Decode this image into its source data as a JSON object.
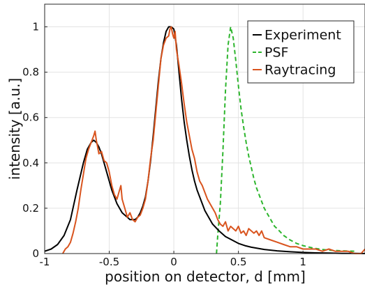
{
  "chart_data": {
    "type": "line",
    "title": "",
    "xlabel": "position on detector, d [mm]",
    "ylabel": "intensity [a.u.]",
    "xlim": [
      -1.0,
      1.48
    ],
    "ylim": [
      0,
      1.1
    ],
    "xticks": [
      -1,
      -0.5,
      0,
      0.5,
      1
    ],
    "xtick_labels": [
      "-1",
      "-0.5",
      "0",
      "0.5",
      "1"
    ],
    "yticks": [
      0,
      0.2,
      0.4,
      0.6,
      0.8,
      1
    ],
    "ytick_labels": [
      "0",
      "0.2",
      "0.4",
      "0.6",
      "0.8",
      "1"
    ],
    "grid": true,
    "legend_position": "top-right",
    "series": [
      {
        "name": "Experiment",
        "color": "#000000",
        "style": "solid",
        "x": [
          -1.0,
          -0.95,
          -0.9,
          -0.85,
          -0.8,
          -0.75,
          -0.7,
          -0.67,
          -0.64,
          -0.62,
          -0.6,
          -0.58,
          -0.56,
          -0.54,
          -0.52,
          -0.5,
          -0.48,
          -0.46,
          -0.44,
          -0.42,
          -0.4,
          -0.38,
          -0.36,
          -0.34,
          -0.32,
          -0.3,
          -0.28,
          -0.26,
          -0.24,
          -0.22,
          -0.2,
          -0.18,
          -0.16,
          -0.14,
          -0.12,
          -0.1,
          -0.08,
          -0.06,
          -0.04,
          -0.02,
          0.0,
          0.02,
          0.04,
          0.06,
          0.08,
          0.1,
          0.12,
          0.14,
          0.16,
          0.18,
          0.2,
          0.22,
          0.24,
          0.26,
          0.28,
          0.3,
          0.35,
          0.4,
          0.45,
          0.5,
          0.55,
          0.6,
          0.7,
          0.8,
          0.9,
          1.0,
          1.1,
          1.2,
          1.3,
          1.4,
          1.48
        ],
        "y": [
          0.01,
          0.02,
          0.04,
          0.08,
          0.15,
          0.28,
          0.4,
          0.46,
          0.49,
          0.5,
          0.49,
          0.47,
          0.44,
          0.4,
          0.36,
          0.32,
          0.28,
          0.25,
          0.22,
          0.2,
          0.18,
          0.17,
          0.16,
          0.15,
          0.15,
          0.15,
          0.16,
          0.18,
          0.21,
          0.25,
          0.32,
          0.41,
          0.52,
          0.64,
          0.76,
          0.86,
          0.93,
          0.98,
          1.0,
          1.0,
          0.99,
          0.92,
          0.8,
          0.68,
          0.58,
          0.5,
          0.43,
          0.37,
          0.32,
          0.28,
          0.25,
          0.22,
          0.19,
          0.17,
          0.15,
          0.13,
          0.1,
          0.075,
          0.06,
          0.045,
          0.035,
          0.028,
          0.018,
          0.012,
          0.008,
          0.005,
          0.003,
          0.002,
          0.001,
          0.001,
          0.0
        ]
      },
      {
        "name": "PSF",
        "color": "#2db52d",
        "style": "dashed",
        "x": [
          0.33,
          0.34,
          0.36,
          0.38,
          0.4,
          0.42,
          0.44,
          0.46,
          0.48,
          0.5,
          0.52,
          0.54,
          0.56,
          0.58,
          0.6,
          0.62,
          0.64,
          0.66,
          0.68,
          0.7,
          0.72,
          0.74,
          0.76,
          0.78,
          0.8,
          0.85,
          0.9,
          0.95,
          1.0,
          1.05,
          1.1,
          1.15,
          1.2,
          1.3,
          1.4
        ],
        "y": [
          0.0,
          0.08,
          0.22,
          0.45,
          0.72,
          0.92,
          1.0,
          0.95,
          0.85,
          0.74,
          0.64,
          0.56,
          0.49,
          0.43,
          0.38,
          0.33,
          0.29,
          0.26,
          0.23,
          0.2,
          0.18,
          0.16,
          0.14,
          0.12,
          0.11,
          0.08,
          0.06,
          0.045,
          0.035,
          0.028,
          0.022,
          0.018,
          0.015,
          0.012,
          0.01
        ]
      },
      {
        "name": "Raytracing",
        "color": "#d9541e",
        "style": "solid",
        "x": [
          -0.86,
          -0.84,
          -0.82,
          -0.8,
          -0.78,
          -0.76,
          -0.74,
          -0.72,
          -0.7,
          -0.68,
          -0.66,
          -0.64,
          -0.62,
          -0.61,
          -0.6,
          -0.59,
          -0.58,
          -0.56,
          -0.54,
          -0.52,
          -0.5,
          -0.48,
          -0.46,
          -0.44,
          -0.42,
          -0.41,
          -0.4,
          -0.38,
          -0.36,
          -0.34,
          -0.32,
          -0.3,
          -0.28,
          -0.26,
          -0.24,
          -0.22,
          -0.2,
          -0.18,
          -0.16,
          -0.14,
          -0.12,
          -0.1,
          -0.08,
          -0.06,
          -0.04,
          -0.03,
          -0.02,
          -0.01,
          0.0,
          0.01,
          0.02,
          0.04,
          0.06,
          0.08,
          0.1,
          0.12,
          0.14,
          0.16,
          0.18,
          0.2,
          0.22,
          0.24,
          0.26,
          0.28,
          0.3,
          0.32,
          0.34,
          0.36,
          0.38,
          0.4,
          0.42,
          0.44,
          0.46,
          0.48,
          0.5,
          0.52,
          0.54,
          0.56,
          0.58,
          0.6,
          0.62,
          0.64,
          0.66,
          0.68,
          0.7,
          0.75,
          0.8,
          0.85,
          0.9,
          0.95,
          1.0,
          1.05,
          1.1,
          1.15,
          1.2,
          1.25,
          1.3,
          1.35,
          1.4,
          1.45,
          1.48
        ],
        "y": [
          0.0,
          0.02,
          0.03,
          0.05,
          0.09,
          0.14,
          0.2,
          0.28,
          0.35,
          0.42,
          0.46,
          0.49,
          0.52,
          0.54,
          0.5,
          0.47,
          0.44,
          0.45,
          0.41,
          0.4,
          0.36,
          0.3,
          0.26,
          0.24,
          0.28,
          0.3,
          0.24,
          0.2,
          0.16,
          0.18,
          0.15,
          0.14,
          0.16,
          0.17,
          0.2,
          0.24,
          0.32,
          0.42,
          0.5,
          0.62,
          0.74,
          0.86,
          0.92,
          0.95,
          0.96,
          0.99,
          1.0,
          0.97,
          0.95,
          0.98,
          0.9,
          0.83,
          0.75,
          0.66,
          0.58,
          0.52,
          0.46,
          0.42,
          0.36,
          0.32,
          0.3,
          0.27,
          0.24,
          0.22,
          0.2,
          0.18,
          0.15,
          0.13,
          0.12,
          0.14,
          0.1,
          0.12,
          0.11,
          0.1,
          0.12,
          0.09,
          0.1,
          0.08,
          0.11,
          0.1,
          0.09,
          0.1,
          0.08,
          0.1,
          0.07,
          0.06,
          0.05,
          0.04,
          0.03,
          0.03,
          0.02,
          0.02,
          0.02,
          0.01,
          0.02,
          0.01,
          0.01,
          0.01,
          0.0,
          0.0,
          0.02
        ]
      }
    ]
  }
}
